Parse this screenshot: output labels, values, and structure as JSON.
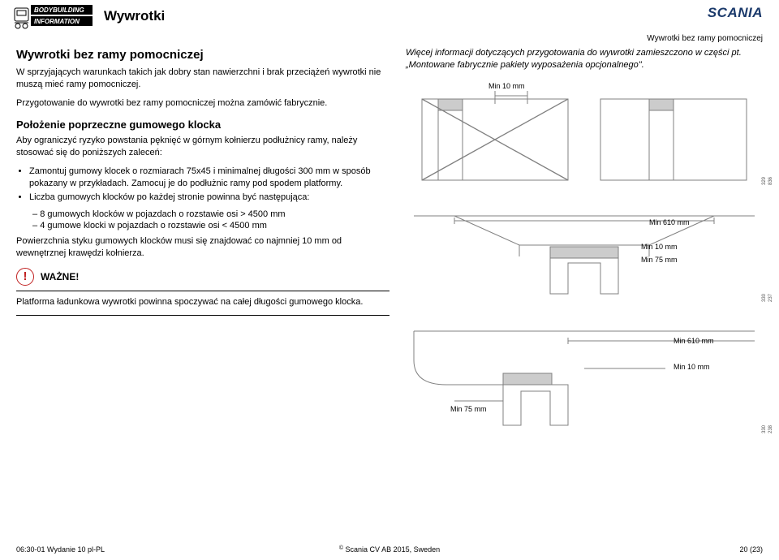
{
  "header": {
    "logo_top": "BODYBUILDING",
    "logo_bottom": "INFORMATION",
    "title": "Wywrotki",
    "brand": "SCANIA",
    "top_right_sub": "Wywrotki bez ramy pomocniczej"
  },
  "left": {
    "h2": "Wywrotki bez ramy pomocniczej",
    "p1": "W sprzyjających warunkach takich jak dobry stan nawierzchni i brak przeciążeń wywrotki nie muszą mieć ramy pomocniczej.",
    "p2": "Przygotowanie do wywrotki bez ramy pomocniczej można zamówić fabrycznie.",
    "h3": "Położenie poprzeczne gumowego klocka",
    "p3": "Aby ograniczyć ryzyko powstania pęknięć w górnym kołnierzu podłużnicy ramy, należy stosować się do poniższych zaleceń:",
    "b1": "Zamontuj gumowy klocek o rozmiarach 75x45 i minimalnej długości 300 mm w sposób pokazany w przykładach. Zamocuj je do podłużnic ramy pod spodem platformy.",
    "b2": "Liczba gumowych klocków po każdej stronie powinna być następująca:",
    "d1": "8 gumowych klocków w pojazdach o rozstawie osi > 4500 mm",
    "d2": "4 gumowe klocki w pojazdach o rozstawie osi < 4500 mm",
    "p4": "Powierzchnia styku gumowych klocków musi się znajdować co najmniej 10 mm od wewnętrznej krawędzi kołnierza.",
    "warn": "WAŻNE!",
    "p5": "Platforma ładunkowa wywrotki powinna spoczywać na całej długości gumowego klocka."
  },
  "right": {
    "p1a": "Więcej informacji dotyczących przygotowania do wywrotki zamieszczono w części pt. ",
    "p1b": "„Montowane fabrycznie pakiety wyposażenia opcjonalnego\"."
  },
  "labels": {
    "min10": "Min 10 mm",
    "min610": "Min 610 mm",
    "min75": "Min 75 mm"
  },
  "codes": {
    "c1": "329 836",
    "c2": "330 237",
    "c3": "330 238"
  },
  "footer": {
    "left": "06:30-01 Wydanie 10 pl-PL",
    "center": "© Scania CV AB 2015, Sweden",
    "right": "20 (23)"
  },
  "style": {
    "stroke": "#808080",
    "stroke_thin": 1,
    "background": "#ffffff",
    "text_color": "#000000",
    "brand_color": "#1b3a6b",
    "warn_color": "#c02020"
  }
}
